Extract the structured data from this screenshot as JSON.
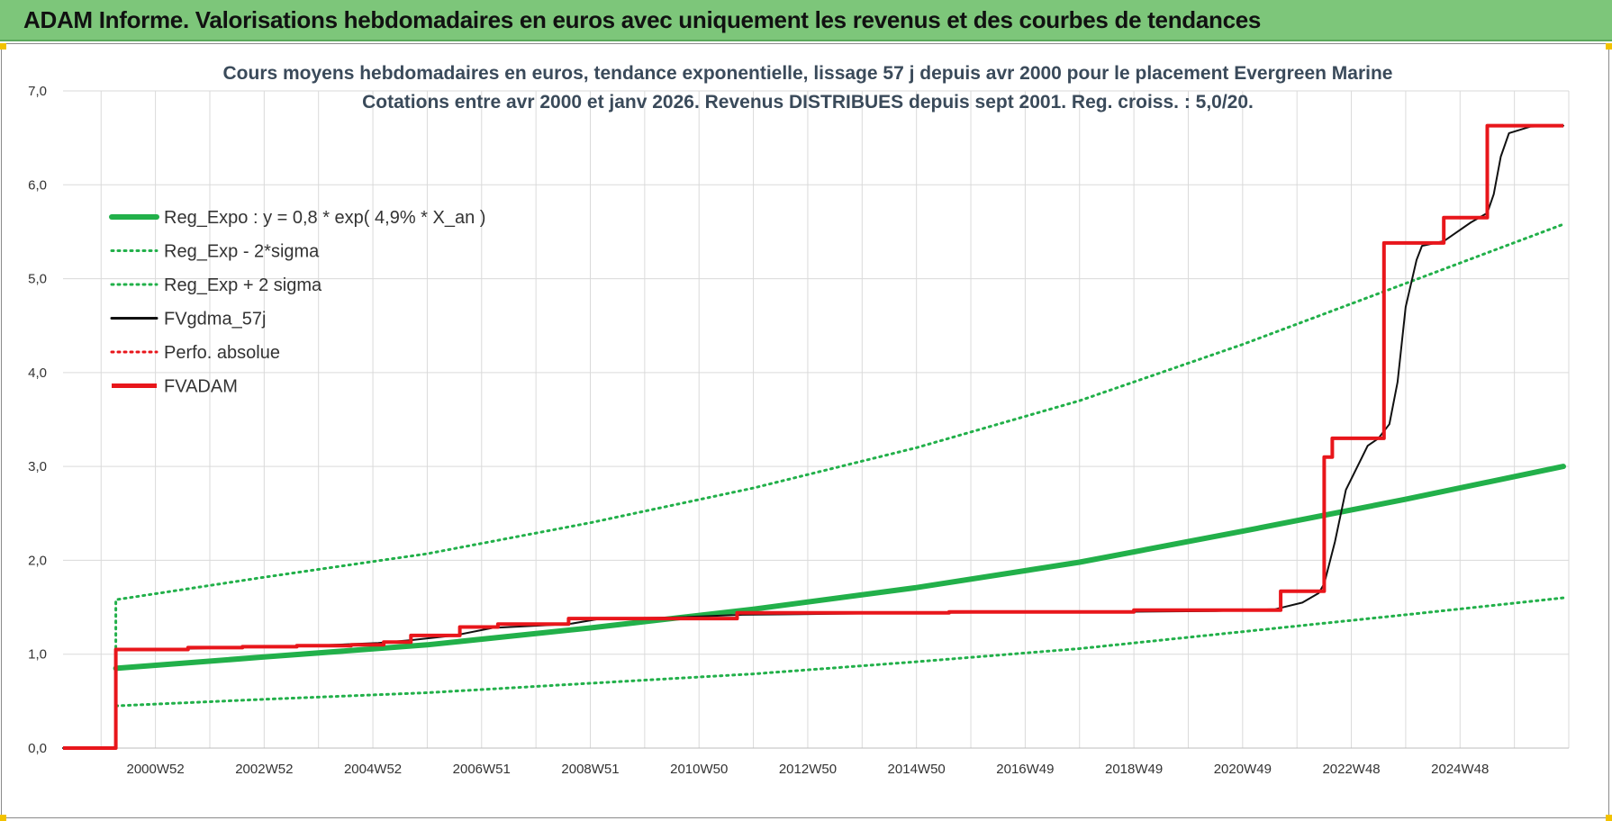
{
  "banner": {
    "title": "ADAM Informe. Valorisations hebdomadaires en euros avec uniquement les revenus et des courbes de tendances"
  },
  "colors": {
    "banner_bg": "#7dc67a",
    "reg_green": "#22b04a",
    "fvadam_red": "#e8161b",
    "fvgdma_black": "#111111",
    "grid": "#dadada"
  },
  "chart_data": {
    "type": "line",
    "title": "Cours moyens hebdomadaires en euros, tendance exponentielle, lissage 57 j depuis avr 2000 pour le placement Evergreen Marine",
    "subtitle": "Cotations entre avr 2000 et janv 2026. Revenus DISTRIBUES depuis sept 2001. Reg. croiss. : 5,0/20.",
    "xlabel": "",
    "ylabel": "",
    "ylim": [
      0,
      7
    ],
    "yticks": [
      "0,0",
      "1,0",
      "2,0",
      "3,0",
      "4,0",
      "5,0",
      "6,0",
      "7,0"
    ],
    "xlim": [
      1998.3,
      2026.0
    ],
    "xticks": [
      {
        "label": "2000W52",
        "x": 2000.0
      },
      {
        "label": "2002W52",
        "x": 2002.0
      },
      {
        "label": "2004W52",
        "x": 2004.0
      },
      {
        "label": "2006W51",
        "x": 2006.0
      },
      {
        "label": "2008W51",
        "x": 2008.0
      },
      {
        "label": "2010W50",
        "x": 2010.0
      },
      {
        "label": "2012W50",
        "x": 2012.0
      },
      {
        "label": "2014W50",
        "x": 2014.0
      },
      {
        "label": "2016W49",
        "x": 2016.0
      },
      {
        "label": "2018W49",
        "x": 2018.0
      },
      {
        "label": "2020W49",
        "x": 2020.0
      },
      {
        "label": "2022W48",
        "x": 2022.0
      },
      {
        "label": "2024W48",
        "x": 2024.0
      }
    ],
    "grid": true,
    "legend_position": "top-left",
    "series": [
      {
        "name": "Reg_Expo : y = 0,8 * exp( 4,9% *  X_an )",
        "style": "solid-thick",
        "color": "#22b04a",
        "x": [
          1999.27,
          2002,
          2005,
          2008,
          2011,
          2014,
          2017,
          2020,
          2023,
          2025.9
        ],
        "y": [
          0.85,
          0.97,
          1.1,
          1.28,
          1.48,
          1.71,
          1.98,
          2.31,
          2.65,
          3.0
        ]
      },
      {
        "name": "Reg_Exp - 2*sigma",
        "style": "dotted",
        "color": "#22b04a",
        "x": [
          1999.27,
          2002,
          2005,
          2008,
          2011,
          2014,
          2017,
          2020,
          2023,
          2025.9
        ],
        "y": [
          0.45,
          0.52,
          0.59,
          0.69,
          0.79,
          0.92,
          1.06,
          1.24,
          1.42,
          1.6
        ]
      },
      {
        "name": "Reg_Exp + 2 sigma",
        "style": "dotted",
        "color": "#22b04a",
        "x": [
          1999.27,
          1999.27,
          2002,
          2005,
          2008,
          2011,
          2014,
          2017,
          2020,
          2023,
          2025.9
        ],
        "y": [
          1.0,
          1.58,
          1.82,
          2.07,
          2.4,
          2.77,
          3.2,
          3.7,
          4.3,
          4.95,
          5.58
        ]
      },
      {
        "name": "FVgdma_57j",
        "style": "solid-thin",
        "color": "#111111",
        "x": [
          1998.3,
          1999.26,
          1999.28,
          2000.7,
          2001.3,
          2002.3,
          2003.3,
          2004.1,
          2004.7,
          2005.5,
          2006.2,
          2006.9,
          2007.6,
          2008.2,
          2009.5,
          2010.8,
          2014.0,
          2017.5,
          2019.5,
          2020.6,
          2021.1,
          2021.4,
          2021.5,
          2021.7,
          2021.9,
          2022.3,
          2022.5,
          2022.7,
          2022.85,
          2023.0,
          2023.2,
          2023.3,
          2023.7,
          2024.2,
          2024.5,
          2024.62,
          2024.75,
          2024.9,
          2025.3,
          2025.9
        ],
        "y": [
          0.0,
          0.0,
          1.05,
          1.06,
          1.07,
          1.08,
          1.1,
          1.12,
          1.15,
          1.2,
          1.28,
          1.3,
          1.32,
          1.38,
          1.39,
          1.42,
          1.44,
          1.45,
          1.46,
          1.48,
          1.55,
          1.65,
          1.75,
          2.2,
          2.75,
          3.22,
          3.3,
          3.45,
          3.9,
          4.7,
          5.2,
          5.35,
          5.4,
          5.6,
          5.7,
          5.9,
          6.3,
          6.55,
          6.62,
          6.63
        ]
      },
      {
        "name": "Perfo. absolue",
        "style": "dotted",
        "color": "#e8161b",
        "x": [],
        "y": []
      },
      {
        "name": "FVADAM",
        "style": "step-thick",
        "color": "#e8161b",
        "x": [
          1998.3,
          1999.27,
          1999.27,
          2000.6,
          2000.6,
          2001.6,
          2001.6,
          2002.6,
          2002.6,
          2003.6,
          2003.6,
          2004.2,
          2004.2,
          2004.7,
          2004.7,
          2005.6,
          2005.6,
          2006.3,
          2006.3,
          2007.6,
          2007.6,
          2010.7,
          2010.7,
          2014.6,
          2014.6,
          2018.0,
          2018.0,
          2020.7,
          2020.7,
          2021.5,
          2021.5,
          2021.65,
          2021.65,
          2022.6,
          2022.6,
          2023.7,
          2023.7,
          2024.5,
          2024.5,
          2025.9
        ],
        "y": [
          0.0,
          0.0,
          1.05,
          1.05,
          1.07,
          1.07,
          1.08,
          1.08,
          1.09,
          1.09,
          1.1,
          1.1,
          1.13,
          1.13,
          1.2,
          1.2,
          1.29,
          1.29,
          1.32,
          1.32,
          1.38,
          1.38,
          1.44,
          1.44,
          1.45,
          1.45,
          1.47,
          1.47,
          1.67,
          1.67,
          3.1,
          3.1,
          3.3,
          3.3,
          5.38,
          5.38,
          5.65,
          5.65,
          6.63,
          6.63
        ]
      }
    ]
  }
}
